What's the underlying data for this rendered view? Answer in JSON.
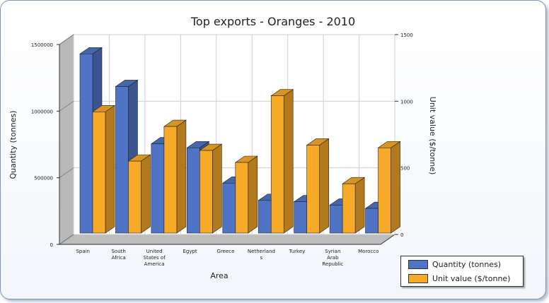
{
  "chart_data": {
    "type": "bar",
    "title": "Top exports - Oranges - 2010",
    "xlabel": "Area",
    "ylabel_left": "Quantity (tonnes)",
    "ylabel_right": "Unit value ($/tonne)",
    "categories": [
      "Spain",
      "South Africa",
      "United States of America",
      "Egypt",
      "Greece",
      "Netherlands",
      "Turkey",
      "Syrian Arab Republic",
      "Morocco"
    ],
    "category_lines": [
      [
        "Spain"
      ],
      [
        "South",
        "Africa"
      ],
      [
        "United",
        "States of",
        "America"
      ],
      [
        "Egypt"
      ],
      [
        "Greece"
      ],
      [
        "Netherland",
        "s"
      ],
      [
        "Turkey"
      ],
      [
        "Syrian",
        "Arab",
        "Republic"
      ],
      [
        "Morocco"
      ]
    ],
    "series": [
      {
        "name": "Quantity (tonnes)",
        "axis": "left",
        "color": "#4f74c6",
        "values": [
          1345000,
          1100000,
          670000,
          640000,
          375000,
          245000,
          235000,
          210000,
          185000
        ]
      },
      {
        "name": "Unit value ($/tonne)",
        "axis": "right",
        "color": "#f7a928",
        "values": [
          910,
          540,
          800,
          620,
          530,
          1030,
          660,
          370,
          640
        ]
      }
    ],
    "ylim_left": [
      0,
      1500000
    ],
    "yticks_left": [
      0,
      500000,
      1000000,
      1500000
    ],
    "ytick_labels_left": [
      "0",
      "500000",
      "1000000",
      "1500000"
    ],
    "ylim_right": [
      0,
      1500
    ],
    "yticks_right": [
      0,
      500,
      1000,
      1500
    ],
    "ytick_labels_right": [
      "0",
      "500",
      "1000",
      "1500"
    ],
    "grid": true,
    "legend_position": "bottom-right"
  }
}
